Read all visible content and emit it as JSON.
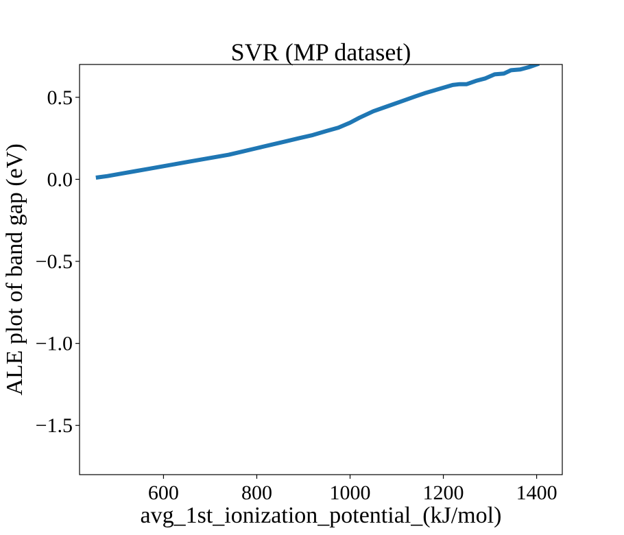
{
  "chart_data": {
    "type": "line",
    "title": "SVR (MP dataset)",
    "xlabel": "avg_1st_ionization_potential_(kJ/mol)",
    "ylabel": "ALE plot of band gap (eV)",
    "xlim": [
      420,
      1455
    ],
    "ylim": [
      -1.8,
      0.7
    ],
    "xticks": [
      600,
      800,
      1000,
      1200,
      1400
    ],
    "xtick_labels": [
      "600",
      "800",
      "1000",
      "1200",
      "1400"
    ],
    "yticks": [
      0.5,
      0.0,
      -0.5,
      -1.0,
      -1.5
    ],
    "ytick_labels": [
      "0.5",
      "0.0",
      "−0.5",
      "−1.0",
      "−1.5"
    ],
    "grid": false,
    "series": [
      {
        "color": "#1f77b4",
        "x": [
          455,
          480,
          510,
          540,
          570,
          600,
          630,
          660,
          680,
          700,
          740,
          770,
          800,
          830,
          860,
          890,
          920,
          950,
          975,
          1000,
          1020,
          1050,
          1080,
          1110,
          1140,
          1160,
          1190,
          1220,
          1235,
          1250,
          1270,
          1290,
          1310,
          1330,
          1345,
          1365,
          1385,
          1405
        ],
        "y": [
          0.01,
          0.02,
          0.035,
          0.05,
          0.065,
          0.08,
          0.095,
          0.11,
          0.12,
          0.13,
          0.15,
          0.17,
          0.19,
          0.21,
          0.23,
          0.25,
          0.27,
          0.295,
          0.315,
          0.345,
          0.375,
          0.415,
          0.445,
          0.475,
          0.505,
          0.525,
          0.55,
          0.575,
          0.58,
          0.58,
          0.6,
          0.615,
          0.64,
          0.645,
          0.665,
          0.67,
          0.685,
          0.705
        ]
      }
    ]
  }
}
